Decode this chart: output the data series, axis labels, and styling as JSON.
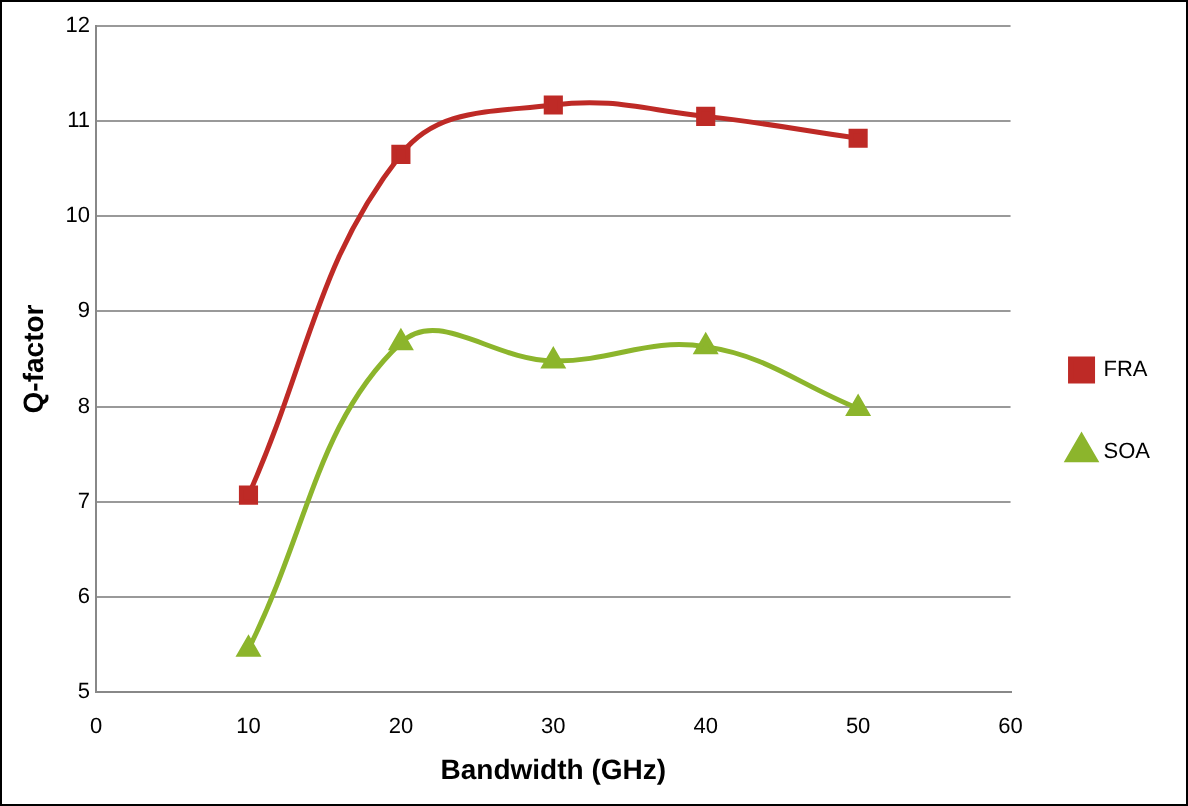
{
  "chart_data": {
    "type": "line",
    "xlabel": "Bandwidth (GHz)",
    "ylabel": "Q-factor",
    "x": [
      10,
      20,
      30,
      40,
      50
    ],
    "series": [
      {
        "name": "FRA",
        "color": "#be2a26",
        "marker": "square",
        "values": [
          7.07,
          10.65,
          11.17,
          11.05,
          10.82
        ]
      },
      {
        "name": "SOA",
        "color": "#8cb52c",
        "marker": "triangle",
        "values": [
          5.45,
          8.67,
          8.48,
          8.63,
          7.98
        ]
      }
    ],
    "xlim": [
      0,
      60
    ],
    "xticks": [
      0,
      10,
      20,
      30,
      40,
      50,
      60
    ],
    "ylim": [
      5,
      12
    ],
    "yticks": [
      5,
      6,
      7,
      8,
      9,
      10,
      11,
      12
    ],
    "grid": "y",
    "legend": "right"
  }
}
